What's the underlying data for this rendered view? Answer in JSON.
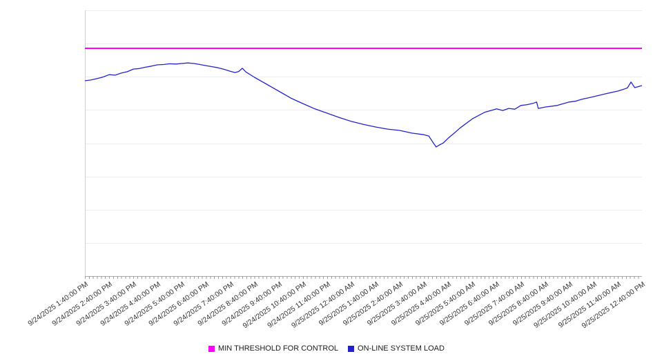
{
  "chart_data": {
    "type": "line",
    "title": "",
    "xlabel": "",
    "ylabel": "",
    "y_axis_labels_visible": false,
    "ylim": [
      0,
      100
    ],
    "x_span_hours": [
      0,
      23
    ],
    "grid": {
      "horizontal_divisions": 8
    },
    "legend_position": "bottom-center",
    "x_tick_labels": [
      "9/24/2025 1:40:00 PM",
      "9/24/2025 2:40:00 PM",
      "9/24/2025 3:40:00 PM",
      "9/24/2025 4:40:00 PM",
      "9/24/2025 5:40:00 PM",
      "9/24/2025 6:40:00 PM",
      "9/24/2025 7:40:00 PM",
      "9/24/2025 8:40:00 PM",
      "9/24/2025 9:40:00 PM",
      "9/24/2025 10:40:00 PM",
      "9/24/2025 11:40:00 PM",
      "9/25/2025 12:40:00 AM",
      "9/25/2025 1:40:00 AM",
      "9/25/2025 2:40:00 AM",
      "9/25/2025 3:40:00 AM",
      "9/25/2025 4:40:00 AM",
      "9/25/2025 5:40:00 AM",
      "9/25/2025 6:40:00 AM",
      "9/25/2025 7:40:00 AM",
      "9/25/2025 8:40:00 AM",
      "9/25/2025 9:40:00 AM",
      "9/25/2025 10:40:00 AM",
      "9/25/2025 11:40:00 AM",
      "9/25/2025 12:40:00 PM"
    ],
    "series": [
      {
        "name": "MIN THRESHOLD FOR CONTROL",
        "color": "#ff00ff",
        "style": "constant-horizontal-line",
        "units": "percent-of-plot-height",
        "value": 85.7
      },
      {
        "name": "ON-LINE SYSTEM LOAD",
        "color": "#2222cc",
        "style": "line",
        "units": "percent-of-plot-height",
        "points": [
          [
            0,
            73.5
          ],
          [
            0.25,
            73.8
          ],
          [
            0.5,
            74.3
          ],
          [
            0.75,
            74.9
          ],
          [
            1,
            75.8
          ],
          [
            1.25,
            75.6
          ],
          [
            1.5,
            76.4
          ],
          [
            1.75,
            76.9
          ],
          [
            2,
            77.9
          ],
          [
            2.25,
            78.1
          ],
          [
            2.5,
            78.6
          ],
          [
            2.75,
            79.0
          ],
          [
            3,
            79.5
          ],
          [
            3.25,
            79.6
          ],
          [
            3.5,
            79.9
          ],
          [
            3.75,
            79.8
          ],
          [
            4,
            80.0
          ],
          [
            4.25,
            80.2
          ],
          [
            4.5,
            80.0
          ],
          [
            4.75,
            79.6
          ],
          [
            5,
            79.2
          ],
          [
            5.25,
            78.8
          ],
          [
            5.5,
            78.4
          ],
          [
            5.75,
            77.8
          ],
          [
            6,
            77.1
          ],
          [
            6.2,
            76.6
          ],
          [
            6.35,
            77.0
          ],
          [
            6.5,
            78.2
          ],
          [
            6.65,
            76.8
          ],
          [
            7,
            74.8
          ],
          [
            7.5,
            72.2
          ],
          [
            8,
            69.6
          ],
          [
            8.5,
            67.0
          ],
          [
            9,
            64.9
          ],
          [
            9.5,
            62.9
          ],
          [
            10,
            61.3
          ],
          [
            10.5,
            59.7
          ],
          [
            11,
            58.2
          ],
          [
            11.5,
            57.1
          ],
          [
            12,
            56.1
          ],
          [
            12.5,
            55.3
          ],
          [
            13,
            54.8
          ],
          [
            13.5,
            53.8
          ],
          [
            14,
            53.2
          ],
          [
            14.2,
            52.7
          ],
          [
            14.35,
            50.6
          ],
          [
            14.5,
            48.6
          ],
          [
            14.65,
            49.4
          ],
          [
            14.8,
            50.1
          ],
          [
            15,
            51.9
          ],
          [
            15.25,
            53.8
          ],
          [
            15.5,
            55.8
          ],
          [
            16,
            59.2
          ],
          [
            16.5,
            61.6
          ],
          [
            17,
            62.9
          ],
          [
            17.25,
            62.3
          ],
          [
            17.5,
            63.1
          ],
          [
            17.75,
            62.8
          ],
          [
            18,
            64.2
          ],
          [
            18.25,
            64.5
          ],
          [
            18.5,
            65.0
          ],
          [
            18.65,
            65.5
          ],
          [
            18.72,
            63.1
          ],
          [
            19,
            63.6
          ],
          [
            19.5,
            64.2
          ],
          [
            20,
            65.5
          ],
          [
            20.25,
            65.8
          ],
          [
            20.5,
            66.5
          ],
          [
            21,
            67.5
          ],
          [
            21.5,
            68.6
          ],
          [
            22,
            69.6
          ],
          [
            22.25,
            70.3
          ],
          [
            22.4,
            70.8
          ],
          [
            22.55,
            73.0
          ],
          [
            22.7,
            70.9
          ],
          [
            23,
            71.7
          ]
        ]
      }
    ]
  }
}
